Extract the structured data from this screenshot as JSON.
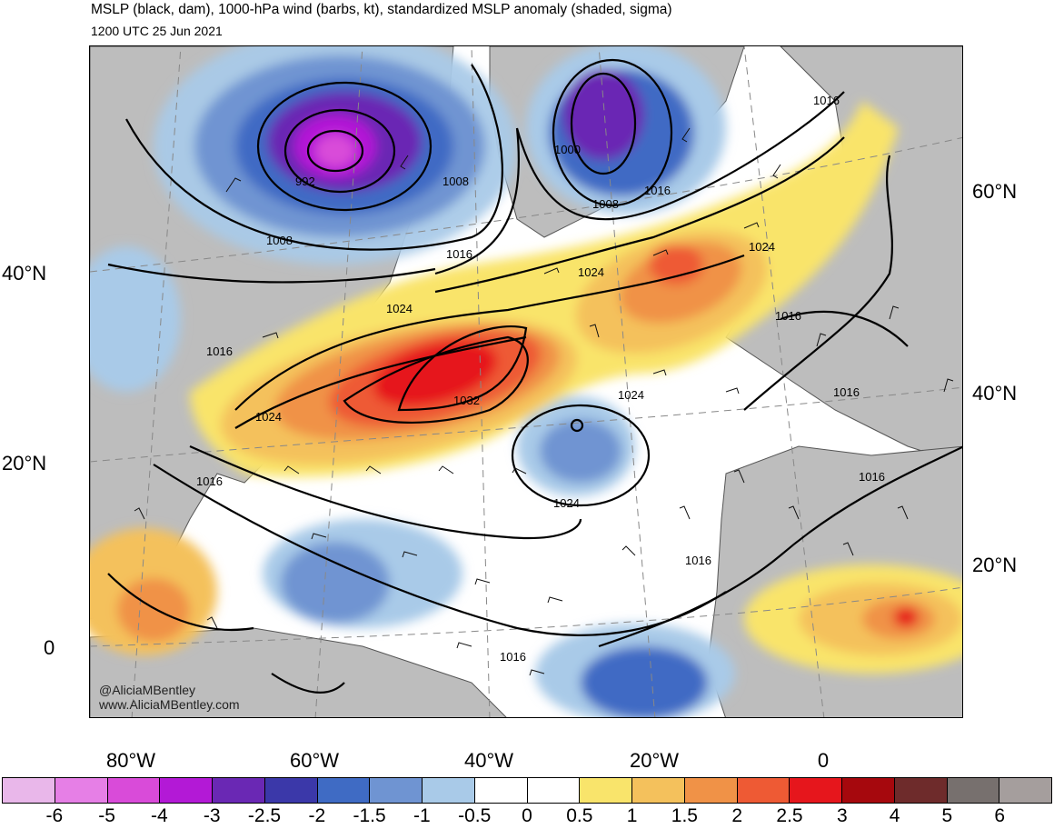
{
  "header": {
    "title": "MSLP (black, dam), 1000-hPa wind (barbs, kt), standardized MSLP anomaly (shaded, sigma)",
    "valid_time": "1200 UTC 25 Jun 2021"
  },
  "credit": {
    "handle": "@AliciaMBentley",
    "website": "www.AliciaMBentley.com"
  },
  "axes": {
    "left_lat_labels": [
      "40°N",
      "20°N",
      "0"
    ],
    "right_lat_labels": [
      "60°N",
      "40°N",
      "20°N"
    ],
    "bottom_lon_labels": [
      "80°W",
      "60°W",
      "40°W",
      "20°W",
      "0"
    ]
  },
  "isobar_labels": {
    "l992": "992",
    "l1000": "1000",
    "l1008a": "1008",
    "l1008b": "1008",
    "l1008c": "1008",
    "l1016a": "1016",
    "l1016b": "1016",
    "l1016c": "1016",
    "l1016d": "1016",
    "l1016e": "1016",
    "l1016f": "1016",
    "l1016g": "1016",
    "l1016h": "1016",
    "l1016i": "1016",
    "l1024a": "1024",
    "l1024b": "1024",
    "l1024c": "1024",
    "l1024d": "1024",
    "l1024e": "1024",
    "l1024f": "1024",
    "l1032": "1032"
  },
  "colorbar": {
    "colors": [
      "#e9b7ea",
      "#e67fe6",
      "#d94bd9",
      "#b319d6",
      "#6a28b4",
      "#3b38a9",
      "#3f6bc4",
      "#6f94d2",
      "#a9cae8",
      "#ffffff",
      "#ffffff",
      "#f9e46b",
      "#f4c15c",
      "#f09247",
      "#ee5a34",
      "#e6161c",
      "#a6080d",
      "#6e2b2b",
      "#77706e",
      "#a59e9d"
    ],
    "ticks": [
      "-6",
      "-5",
      "-4",
      "-3",
      "-2.5",
      "-2",
      "-1.5",
      "-1",
      "-0.5",
      "0",
      "0.5",
      "1",
      "1.5",
      "2",
      "2.5",
      "3",
      "4",
      "5",
      "6"
    ]
  }
}
